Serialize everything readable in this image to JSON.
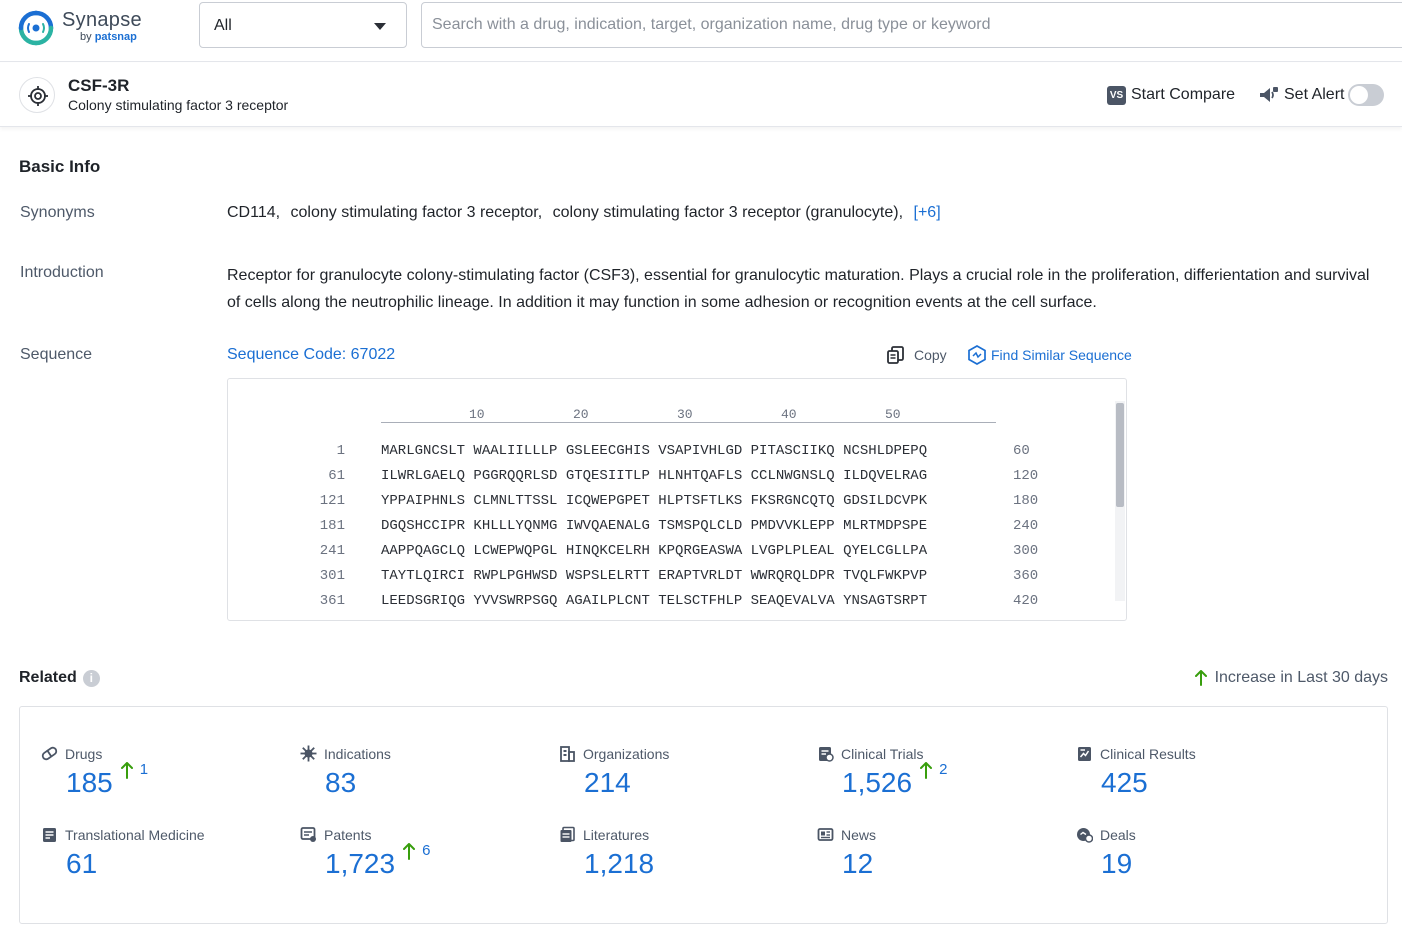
{
  "app": {
    "logo_name": "Synapse",
    "logo_by": "by",
    "logo_brand": "patsnap",
    "brand_color": "#1b6fd3"
  },
  "header": {
    "select_value": "All",
    "search_placeholder": "Search with a drug, indication, target, organization name, drug type or keyword"
  },
  "target": {
    "icon": "target-icon",
    "title": "CSF-3R",
    "subtitle": "Colony stimulating factor 3 receptor",
    "compare_badge": "VS",
    "compare_label": "Start Compare",
    "alert_label": "Set Alert",
    "alert_on": false
  },
  "basic_info": {
    "title": "Basic Info",
    "synonyms_label": "Synonyms",
    "synonyms": [
      "CD114,",
      "colony stimulating factor 3 receptor,",
      "colony stimulating factor 3 receptor (granulocyte),"
    ],
    "synonyms_more": "[+6]",
    "introduction_label": "Introduction",
    "introduction": "Receptor for granulocyte colony-stimulating factor (CSF3), essential for granulocytic maturation. Plays a crucial role in the proliferation, differientation and survival of cells along the neutrophilic lineage. In addition it may function in some adhesion or recognition events at the cell surface.",
    "sequence_label": "Sequence",
    "sequence_code": "Sequence Code: 67022",
    "copy_label": "Copy",
    "similar_label": "Find Similar Sequence",
    "ruler_ticks": [
      "10",
      "20",
      "30",
      "40",
      "50"
    ],
    "sequence_rows": [
      {
        "start": "1",
        "body": "MARLGNCSLT WAALIILLLP GSLEECGHIS VSAPIVHLGD PITASCIIKQ NCSHLDPEPQ",
        "end": "60"
      },
      {
        "start": "61",
        "body": "ILWRLGAELQ PGGRQQRLSD GTQESIITLP HLNHTQAFLS CCLNWGNSLQ ILDQVELRAG",
        "end": "120"
      },
      {
        "start": "121",
        "body": "YPPAIPHNLS CLMNLTTSSL ICQWEPGPET HLPTSFTLKS FKSRGNCQTQ GDSILDCVPK",
        "end": "180"
      },
      {
        "start": "181",
        "body": "DGQSHCCIPR KHLLLYQNMG IWVQAENALG TSMSPQLCLD PMDVVKLEPP MLRTMDPSPE",
        "end": "240"
      },
      {
        "start": "241",
        "body": "AAPPQAGCLQ LCWEPWQPGL HINQKCELRH KPQRGEASWA LVGPLPLEAL QYELCGLLPA",
        "end": "300"
      },
      {
        "start": "301",
        "body": "TAYTLQIRCI RWPLPGHWSD WSPSLELRTT ERAPTVRLDT WWRQRQLDPR TVQLFWKPVP",
        "end": "360"
      },
      {
        "start": "361",
        "body": "LEEDSGRIQG YVVSWRPSGQ AGAILPLCNT TELSCTFHLP SEAQEVALVA YNSAGTSRPT",
        "end": "420"
      }
    ]
  },
  "related": {
    "title": "Related",
    "info_icon": "i",
    "increase_note": "Increase in Last 30 days",
    "increase_color": "#389e0d",
    "stats": [
      {
        "icon": "pill-icon",
        "label": "Drugs",
        "value": "185",
        "increase": "1"
      },
      {
        "icon": "virus-icon",
        "label": "Indications",
        "value": "83",
        "increase": ""
      },
      {
        "icon": "building-icon",
        "label": "Organizations",
        "value": "214",
        "increase": ""
      },
      {
        "icon": "clipboard-icon",
        "label": "Clinical Trials",
        "value": "1,526",
        "increase": "2"
      },
      {
        "icon": "chart-doc-icon",
        "label": "Clinical Results",
        "value": "425",
        "increase": ""
      },
      {
        "icon": "book-icon",
        "label": "Translational Medicine",
        "value": "61",
        "increase": ""
      },
      {
        "icon": "patent-icon",
        "label": "Patents",
        "value": "1,723",
        "increase": "6"
      },
      {
        "icon": "document-icon",
        "label": "Literatures",
        "value": "1,218",
        "increase": ""
      },
      {
        "icon": "newspaper-icon",
        "label": "News",
        "value": "12",
        "increase": ""
      },
      {
        "icon": "handshake-icon",
        "label": "Deals",
        "value": "19",
        "increase": ""
      }
    ]
  }
}
